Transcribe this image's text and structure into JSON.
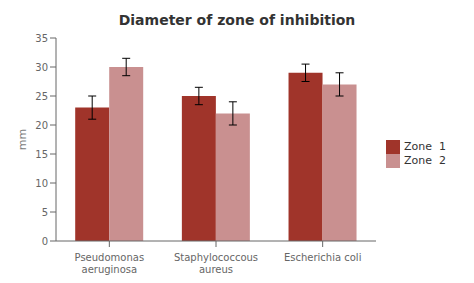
{
  "chart_data": {
    "type": "bar",
    "title": "Diameter of zone of inhibition",
    "ylabel": "mm",
    "categories": [
      "Pseudomonas\naeruginosa",
      "Staphylococcous\naureus",
      "Escherichia coli"
    ],
    "series": [
      {
        "name": "Zone  1",
        "color": "#A0342A",
        "values": [
          23,
          25,
          29
        ],
        "errors": [
          2.0,
          1.5,
          1.5
        ]
      },
      {
        "name": "Zone  2",
        "color": "#C99090",
        "values": [
          30,
          22,
          27
        ],
        "errors": [
          1.5,
          2.0,
          2.0
        ]
      }
    ],
    "ylim": [
      0,
      35
    ],
    "yticks": [
      0,
      5,
      10,
      15,
      20,
      25,
      30,
      35
    ],
    "grid": false,
    "legend": "right"
  }
}
